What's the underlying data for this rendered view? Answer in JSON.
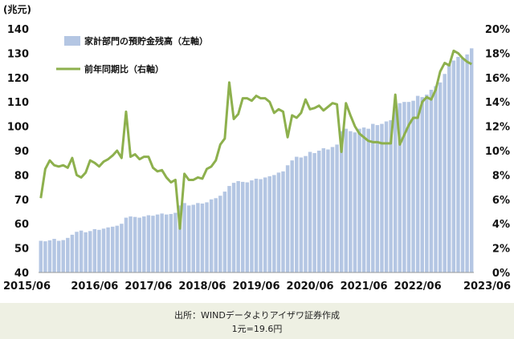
{
  "chart_data": {
    "type": "bar+line",
    "unit_label": "(兆元)",
    "left_axis": {
      "ylim": [
        40,
        140
      ],
      "ticks": [
        40,
        50,
        60,
        70,
        80,
        90,
        100,
        110,
        120,
        130,
        140
      ]
    },
    "right_axis": {
      "ylim": [
        0,
        20
      ],
      "ticks": [
        "0%",
        "2%",
        "4%",
        "6%",
        "8%",
        "10%",
        "12%",
        "14%",
        "16%",
        "18%",
        "20%"
      ]
    },
    "x_tick_labels": [
      "2015/06",
      "2016/06",
      "2017/06",
      "2018/06",
      "2019/06",
      "2020/06",
      "2021/06",
      "2022/06",
      "2023/06"
    ],
    "x": [
      "2015/06",
      "2015/07",
      "2015/08",
      "2015/09",
      "2015/10",
      "2015/11",
      "2015/12",
      "2016/01",
      "2016/02",
      "2016/03",
      "2016/04",
      "2016/05",
      "2016/06",
      "2016/07",
      "2016/08",
      "2016/09",
      "2016/10",
      "2016/11",
      "2016/12",
      "2017/01",
      "2017/02",
      "2017/03",
      "2017/04",
      "2017/05",
      "2017/06",
      "2017/07",
      "2017/08",
      "2017/09",
      "2017/10",
      "2017/11",
      "2017/12",
      "2018/01",
      "2018/02",
      "2018/03",
      "2018/04",
      "2018/05",
      "2018/06",
      "2018/07",
      "2018/08",
      "2018/09",
      "2018/10",
      "2018/11",
      "2018/12",
      "2019/01",
      "2019/02",
      "2019/03",
      "2019/04",
      "2019/05",
      "2019/06",
      "2019/07",
      "2019/08",
      "2019/09",
      "2019/10",
      "2019/11",
      "2019/12",
      "2020/01",
      "2020/02",
      "2020/03",
      "2020/04",
      "2020/05",
      "2020/06",
      "2020/07",
      "2020/08",
      "2020/09",
      "2020/10",
      "2020/11",
      "2020/12",
      "2021/01",
      "2021/02",
      "2021/03",
      "2021/04",
      "2021/05",
      "2021/06",
      "2021/07",
      "2021/08",
      "2021/09",
      "2021/10",
      "2021/11",
      "2021/12",
      "2022/01",
      "2022/02",
      "2022/03",
      "2022/04",
      "2022/05",
      "2022/06",
      "2022/07",
      "2022/08",
      "2022/09",
      "2022/10",
      "2022/11",
      "2022/12",
      "2023/01",
      "2023/02",
      "2023/03",
      "2023/04",
      "2023/05",
      "2023/06"
    ],
    "series": [
      {
        "name": "家計部門の預貯金残高（左軸）",
        "axis": "left",
        "kind": "bar",
        "color": "#b4c6e3",
        "values": [
          53.0,
          52.8,
          53.2,
          53.8,
          53.0,
          53.3,
          54.2,
          55.5,
          56.7,
          57.2,
          56.5,
          57.0,
          57.8,
          57.5,
          58.0,
          58.5,
          58.8,
          59.2,
          60.0,
          62.5,
          63.0,
          62.8,
          62.5,
          63.0,
          63.5,
          63.3,
          63.8,
          64.2,
          63.8,
          64.0,
          64.5,
          67.5,
          68.5,
          67.5,
          67.8,
          68.5,
          68.3,
          68.8,
          70.0,
          70.5,
          71.5,
          73.2,
          75.5,
          76.8,
          77.5,
          77.2,
          77.0,
          77.8,
          78.5,
          78.3,
          79.0,
          79.5,
          80.0,
          81.0,
          81.5,
          84.0,
          86.0,
          87.5,
          87.2,
          87.8,
          89.5,
          89.0,
          90.0,
          91.0,
          90.5,
          91.5,
          92.5,
          98.0,
          99.0,
          98.0,
          97.5,
          99.0,
          99.5,
          99.0,
          101.0,
          100.5,
          101.0,
          102.0,
          102.5,
          107.0,
          109.5,
          110.0,
          110.0,
          110.5,
          112.5,
          112.0,
          113.0,
          115.0,
          116.5,
          118.0,
          121.5,
          125.5,
          127.0,
          128.5,
          128.0,
          129.5,
          132.0
        ]
      },
      {
        "name": "前年同期比（右軸）",
        "axis": "right",
        "kind": "line",
        "color": "#8db04d",
        "values": [
          6.1,
          8.5,
          9.2,
          8.8,
          8.7,
          8.8,
          8.6,
          9.4,
          8.0,
          7.8,
          8.2,
          9.2,
          9.0,
          8.7,
          9.1,
          9.3,
          9.6,
          10.0,
          9.4,
          13.2,
          9.5,
          9.7,
          9.3,
          9.5,
          9.5,
          8.6,
          8.3,
          8.4,
          7.8,
          7.4,
          7.6,
          3.6,
          8.1,
          7.6,
          7.6,
          7.8,
          7.7,
          8.5,
          8.7,
          9.2,
          10.5,
          11.0,
          15.6,
          12.6,
          13.0,
          14.3,
          14.3,
          14.1,
          14.5,
          14.3,
          14.3,
          14.0,
          13.1,
          13.4,
          13.2,
          11.1,
          12.9,
          12.7,
          13.1,
          14.2,
          13.4,
          13.5,
          13.7,
          13.3,
          13.6,
          13.9,
          13.8,
          9.9,
          13.9,
          12.9,
          12.0,
          11.4,
          11.1,
          10.8,
          10.7,
          10.7,
          10.6,
          10.6,
          10.6,
          14.6,
          10.5,
          11.3,
          12.1,
          12.7,
          12.7,
          14.0,
          14.4,
          14.2,
          15.0,
          16.5,
          17.2,
          17.0,
          18.2,
          18.0,
          17.6,
          17.3,
          17.1
        ]
      }
    ]
  },
  "footer": {
    "source": "出所：WINDデータよりアイザワ証券作成",
    "rate": "1元=19.6円"
  }
}
